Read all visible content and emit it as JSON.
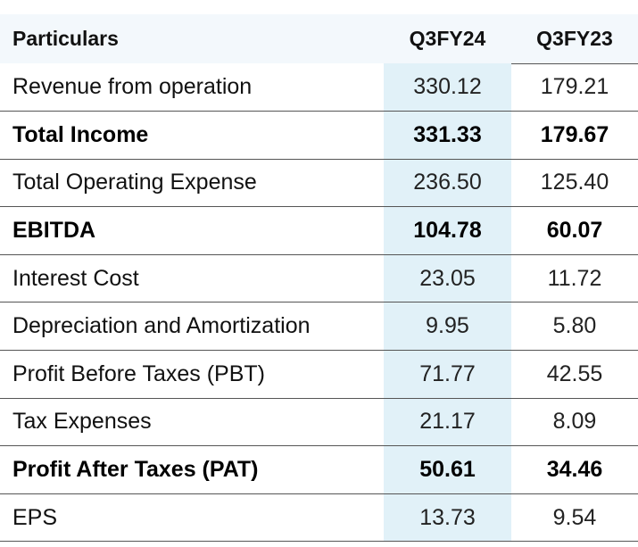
{
  "header": {
    "particulars": "Particulars",
    "col1": "Q3FY24",
    "col2": "Q3FY23"
  },
  "rows": [
    {
      "label": "Revenue from operation",
      "q3fy24": "330.12",
      "q3fy23": "179.21",
      "bold": false
    },
    {
      "label": "Total Income",
      "q3fy24": "331.33",
      "q3fy23": "179.67",
      "bold": true
    },
    {
      "label": "Total Operating Expense",
      "q3fy24": "236.50",
      "q3fy23": "125.40",
      "bold": false
    },
    {
      "label": "EBITDA",
      "q3fy24": "104.78",
      "q3fy23": "60.07",
      "bold": true
    },
    {
      "label": "Interest Cost",
      "q3fy24": "23.05",
      "q3fy23": "11.72",
      "bold": false
    },
    {
      "label": "Depreciation and Amortization",
      "q3fy24": "9.95",
      "q3fy23": "5.80",
      "bold": false
    },
    {
      "label": "Profit Before Taxes (PBT)",
      "q3fy24": "71.77",
      "q3fy23": "42.55",
      "bold": false
    },
    {
      "label": "Tax Expenses",
      "q3fy24": "21.17",
      "q3fy23": "8.09",
      "bold": false
    },
    {
      "label": "Profit After Taxes (PAT)",
      "q3fy24": "50.61",
      "q3fy23": "34.46",
      "bold": true
    },
    {
      "label": "EPS",
      "q3fy24": "13.73",
      "q3fy23": "9.54",
      "bold": false
    }
  ],
  "colors": {
    "header_bg": "#f3f8fc",
    "highlight_column_bg": "#e1f1f8",
    "row_divider": "#555555"
  }
}
